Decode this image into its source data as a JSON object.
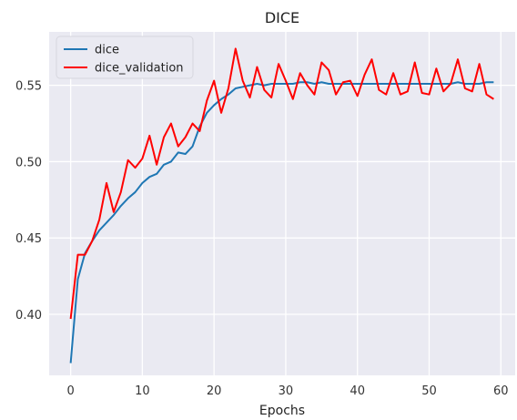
{
  "chart_data": {
    "type": "line",
    "title": "DICE",
    "xlabel": "Epochs",
    "ylabel": "",
    "xlim": [
      -3,
      62
    ],
    "ylim": [
      0.36,
      0.585
    ],
    "xticks": [
      0,
      10,
      20,
      30,
      40,
      50,
      60
    ],
    "yticks": [
      0.4,
      0.45,
      0.5,
      0.55
    ],
    "ytick_labels": [
      "0.40",
      "0.45",
      "0.50",
      "0.55"
    ],
    "grid": true,
    "legend": "top-left",
    "background": "#eaeaf2",
    "series": [
      {
        "name": "dice",
        "color": "#1f77b4",
        "x": [
          0,
          1,
          2,
          3,
          4,
          5,
          6,
          7,
          8,
          9,
          10,
          11,
          12,
          13,
          14,
          15,
          16,
          17,
          18,
          19,
          20,
          21,
          22,
          23,
          24,
          25,
          26,
          27,
          28,
          29,
          30,
          31,
          32,
          33,
          34,
          35,
          36,
          37,
          38,
          39,
          40,
          41,
          42,
          43,
          44,
          45,
          46,
          47,
          48,
          49,
          50,
          51,
          52,
          53,
          54,
          55,
          56,
          57,
          58,
          59
        ],
        "y": [
          0.368,
          0.423,
          0.44,
          0.448,
          0.455,
          0.46,
          0.465,
          0.471,
          0.476,
          0.48,
          0.486,
          0.49,
          0.492,
          0.498,
          0.5,
          0.506,
          0.505,
          0.51,
          0.523,
          0.532,
          0.537,
          0.541,
          0.544,
          0.548,
          0.549,
          0.55,
          0.551,
          0.55,
          0.551,
          0.551,
          0.551,
          0.551,
          0.552,
          0.552,
          0.551,
          0.552,
          0.551,
          0.551,
          0.551,
          0.551,
          0.551,
          0.551,
          0.551,
          0.551,
          0.551,
          0.551,
          0.551,
          0.551,
          0.551,
          0.551,
          0.551,
          0.551,
          0.551,
          0.551,
          0.552,
          0.551,
          0.551,
          0.551,
          0.552,
          0.552
        ]
      },
      {
        "name": "dice_validation",
        "color": "#ff0000",
        "x": [
          0,
          1,
          2,
          3,
          4,
          5,
          6,
          7,
          8,
          9,
          10,
          11,
          12,
          13,
          14,
          15,
          16,
          17,
          18,
          19,
          20,
          21,
          22,
          23,
          24,
          25,
          26,
          27,
          28,
          29,
          30,
          31,
          32,
          33,
          34,
          35,
          36,
          37,
          38,
          39,
          40,
          41,
          42,
          43,
          44,
          45,
          46,
          47,
          48,
          49,
          50,
          51,
          52,
          53,
          54,
          55,
          56,
          57,
          58,
          59
        ],
        "y": [
          0.397,
          0.439,
          0.439,
          0.448,
          0.462,
          0.486,
          0.467,
          0.48,
          0.501,
          0.496,
          0.502,
          0.517,
          0.498,
          0.516,
          0.525,
          0.51,
          0.516,
          0.525,
          0.52,
          0.54,
          0.553,
          0.532,
          0.548,
          0.574,
          0.553,
          0.542,
          0.562,
          0.547,
          0.542,
          0.564,
          0.553,
          0.541,
          0.558,
          0.55,
          0.544,
          0.565,
          0.56,
          0.544,
          0.552,
          0.553,
          0.543,
          0.557,
          0.567,
          0.547,
          0.544,
          0.558,
          0.544,
          0.546,
          0.565,
          0.545,
          0.544,
          0.561,
          0.546,
          0.551,
          0.567,
          0.548,
          0.546,
          0.564,
          0.544,
          0.541
        ]
      }
    ]
  }
}
